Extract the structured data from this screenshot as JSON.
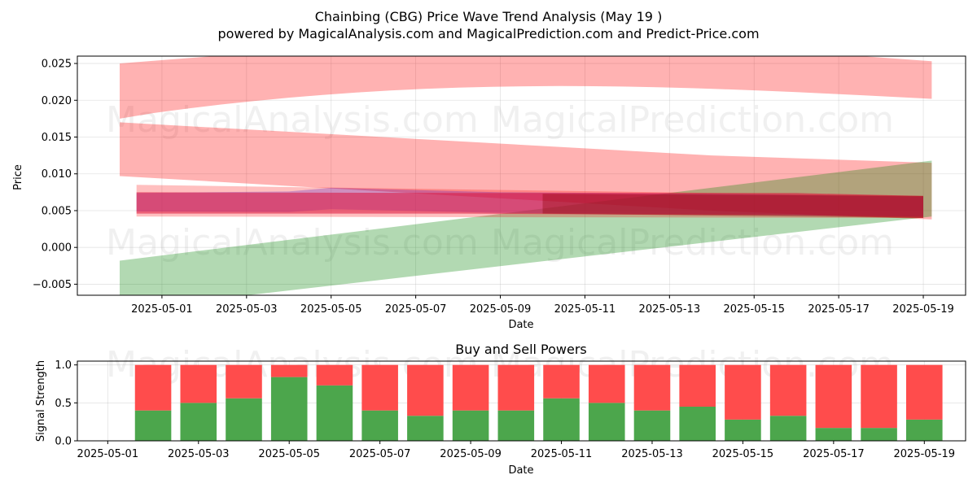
{
  "watermarks": [
    "MagicalAnalysis.com",
    "MagicalPrediction.com"
  ],
  "chart_data": [
    {
      "type": "area",
      "title": "Chainbing (CBG) Price Wave Trend Analysis (May 19 )",
      "subtitle": "powered by MagicalAnalysis.com and MagicalPrediction.com and Predict-Price.com",
      "xlabel": "Date",
      "ylabel": "Price",
      "xlim": [
        "2025-04-29",
        "2025-05-20"
      ],
      "ylim": [
        -0.0065,
        0.026
      ],
      "x_ticks": [
        "2025-05-01",
        "2025-05-03",
        "2025-05-05",
        "2025-05-07",
        "2025-05-09",
        "2025-05-11",
        "2025-05-13",
        "2025-05-15",
        "2025-05-17",
        "2025-05-19"
      ],
      "y_ticks": [
        -0.005,
        0.0,
        0.005,
        0.01,
        0.015,
        0.02,
        0.025
      ],
      "y_tick_labels": [
        "−0.005",
        "0.000",
        "0.005",
        "0.010",
        "0.015",
        "0.020",
        "0.025"
      ],
      "grid": true,
      "bands": [
        {
          "color": "#ff0000",
          "opacity": 0.3,
          "x": [
            "2025-04-30",
            "2025-05-19.2"
          ],
          "upper": [
            0.025,
            0.0253
          ],
          "lower": [
            0.0175,
            0.0202
          ],
          "shape": "arch"
        },
        {
          "color": "#ff0000",
          "opacity": 0.3,
          "x": [
            "2025-04-30",
            "2025-05-14",
            "2025-05-19.2"
          ],
          "upper": [
            0.017,
            0.0125,
            0.0115
          ],
          "lower": [
            0.0097,
            0.005,
            0.0038
          ]
        },
        {
          "color": "#008000",
          "opacity": 0.3,
          "x": [
            "2025-04-30",
            "2025-05-19.2"
          ],
          "upper": [
            -0.0018,
            0.0118
          ],
          "lower": [
            -0.0085,
            0.0042
          ]
        },
        {
          "color": "#0000ff",
          "opacity": 0.25,
          "x": [
            "2025-04-30.4",
            "2025-05-04",
            "2025-05-05",
            "2025-05-09",
            "2025-05-14",
            "2025-05-19"
          ],
          "upper": [
            0.0074,
            0.0076,
            0.0081,
            0.0075,
            0.0073,
            0.0069
          ],
          "lower": [
            0.0049,
            0.0048,
            0.0052,
            0.0047,
            0.0045,
            0.0042
          ]
        },
        {
          "color": "#ff0000",
          "opacity": 0.25,
          "x": [
            "2025-04-30.4",
            "2025-05-19"
          ],
          "upper": [
            0.0085,
            0.007
          ],
          "lower": [
            0.0042,
            0.004
          ]
        },
        {
          "color": "#dc143c",
          "opacity": 0.55,
          "x": [
            "2025-04-30.4",
            "2025-05-08",
            "2025-05-14",
            "2025-05-16",
            "2025-05-19"
          ],
          "upper": [
            0.0075,
            0.0074,
            0.0074,
            0.0074,
            0.007
          ],
          "lower": [
            0.0046,
            0.0046,
            0.0044,
            0.0044,
            0.004
          ]
        },
        {
          "color": "#8b0000",
          "opacity": 0.35,
          "x": [
            "2025-05-10",
            "2025-05-19"
          ],
          "upper": [
            0.0073,
            0.007
          ],
          "lower": [
            0.0046,
            0.004
          ]
        }
      ]
    },
    {
      "type": "bar",
      "title": "Buy and Sell Powers",
      "xlabel": "Date",
      "ylabel": "Signal Strength",
      "xlim": [
        "2025-05-01",
        "2025-05-20"
      ],
      "ylim": [
        0,
        1.05
      ],
      "x_ticks": [
        "2025-05-01",
        "2025-05-03",
        "2025-05-05",
        "2025-05-07",
        "2025-05-09",
        "2025-05-11",
        "2025-05-13",
        "2025-05-15",
        "2025-05-17",
        "2025-05-19"
      ],
      "y_ticks": [
        0.0,
        0.5,
        1.0
      ],
      "y_tick_labels": [
        "0.0",
        "0.5",
        "1.0"
      ],
      "grid": true,
      "categories": [
        "2025-05-02",
        "2025-05-03",
        "2025-05-04",
        "2025-05-05",
        "2025-05-06",
        "2025-05-07",
        "2025-05-08",
        "2025-05-09",
        "2025-05-10",
        "2025-05-11",
        "2025-05-12",
        "2025-05-13",
        "2025-05-14",
        "2025-05-15",
        "2025-05-16",
        "2025-05-17",
        "2025-05-18",
        "2025-05-19"
      ],
      "series": [
        {
          "color": "#4ca64c",
          "values": [
            0.4,
            0.5,
            0.56,
            0.84,
            0.73,
            0.4,
            0.33,
            0.4,
            0.4,
            0.56,
            0.5,
            0.4,
            0.45,
            0.28,
            0.33,
            0.17,
            0.17,
            0.28
          ]
        },
        {
          "color": "#ff4c4c",
          "values": [
            0.6,
            0.5,
            0.44,
            0.16,
            0.27,
            0.6,
            0.67,
            0.6,
            0.6,
            0.44,
            0.5,
            0.6,
            0.55,
            0.72,
            0.67,
            0.83,
            0.83,
            0.72
          ]
        }
      ]
    }
  ]
}
